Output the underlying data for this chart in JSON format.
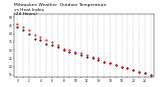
{
  "title": "Milwaukee Weather  Outdoor Temperature",
  "title2": "vs Heat Index",
  "title3": "(24 Hours)",
  "title_fontsize": 3.2,
  "background_color": "#ffffff",
  "grid_color": "#aaaaaa",
  "ylim": [
    14,
    52
  ],
  "xlim": [
    -0.5,
    23.5
  ],
  "temp_color": "#000000",
  "heat_color": "#ff0000",
  "legend_temp_color": "#0000ff",
  "legend_heat_color": "#ff0000",
  "hours": [
    0,
    1,
    2,
    3,
    4,
    5,
    6,
    7,
    8,
    9,
    10,
    11,
    12,
    13,
    14,
    15,
    16,
    17,
    18,
    19,
    20,
    21,
    22,
    23
  ],
  "temp": [
    44,
    42,
    40,
    37,
    36,
    34,
    33,
    32,
    30,
    29,
    28,
    27,
    26,
    25,
    24,
    23,
    22,
    21,
    20,
    19,
    18,
    17,
    16,
    15
  ],
  "heat": [
    46,
    44,
    42,
    39,
    38,
    36,
    35,
    33,
    31,
    30,
    29,
    28,
    27,
    26,
    25,
    23,
    22,
    21,
    20,
    19,
    18,
    17,
    16,
    15
  ],
  "tick_fontsize": 2.2,
  "marker_size": 1.0
}
